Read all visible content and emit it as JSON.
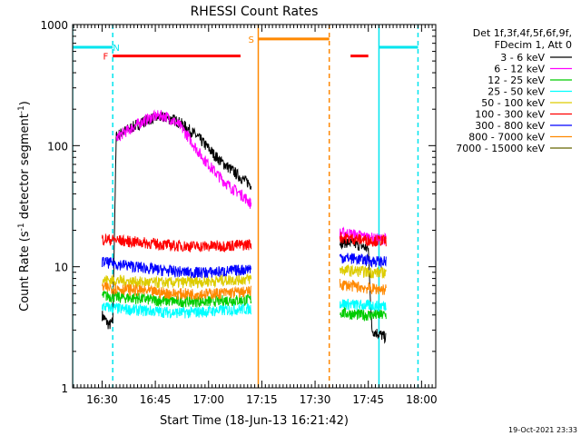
{
  "chart_data": {
    "type": "line",
    "title": "RHESSI Count Rates",
    "xlabel": "Start Time (18-Jun-13 16:21:42)",
    "ylabel_parts": [
      "Count Rate (s",
      "-1",
      " detector segment",
      "-1",
      ")"
    ],
    "yscale": "log",
    "xlim": [
      "16:21:42",
      "18:04:00"
    ],
    "ylim": [
      1,
      1000
    ],
    "x_ticks": [
      "16:30",
      "16:45",
      "17:00",
      "17:15",
      "17:30",
      "17:45",
      "18:00"
    ],
    "y_ticks": [
      "1",
      "10",
      "100",
      "1000"
    ],
    "legend_header": [
      "Det 1f,3f,4f,5f,6f,9f,",
      "FDecim 1, Att 0"
    ],
    "legend_position": "right",
    "footer_date": "19-Oct-2021 23:33",
    "series": [
      {
        "name": "3 - 6 keV",
        "color": "#000000",
        "seg1": [
          [
            "16:30",
            4.0
          ],
          [
            "16:31",
            3.6
          ],
          [
            "16:32",
            3.3
          ],
          [
            "16:33",
            3.5
          ],
          [
            "16:34",
            120
          ],
          [
            "16:36",
            130
          ],
          [
            "16:38",
            140
          ],
          [
            "16:40",
            150
          ],
          [
            "16:42",
            160
          ],
          [
            "16:44",
            168
          ],
          [
            "16:46",
            172
          ],
          [
            "16:48",
            170
          ],
          [
            "16:50",
            165
          ],
          [
            "16:52",
            155
          ],
          [
            "16:54",
            140
          ],
          [
            "16:56",
            125
          ],
          [
            "16:58",
            110
          ],
          [
            "17:00",
            95
          ],
          [
            "17:02",
            82
          ],
          [
            "17:04",
            72
          ],
          [
            "17:06",
            65
          ],
          [
            "17:08",
            58
          ],
          [
            "17:10",
            52
          ],
          [
            "17:12",
            48
          ]
        ],
        "seg2": [
          [
            "17:37",
            16
          ],
          [
            "17:39",
            16
          ],
          [
            "17:41",
            15.5
          ],
          [
            "17:43",
            15
          ],
          [
            "17:45",
            14
          ],
          [
            "17:46",
            3.0
          ],
          [
            "17:48",
            2.8
          ],
          [
            "17:50",
            2.6
          ]
        ]
      },
      {
        "name": "6 - 12 keV",
        "color": "#ff00ff",
        "seg1": [
          [
            "16:34",
            115
          ],
          [
            "16:36",
            128
          ],
          [
            "16:38",
            138
          ],
          [
            "16:40",
            150
          ],
          [
            "16:42",
            162
          ],
          [
            "16:44",
            172
          ],
          [
            "16:46",
            178
          ],
          [
            "16:48",
            175
          ],
          [
            "16:50",
            162
          ],
          [
            "16:52",
            145
          ],
          [
            "16:54",
            122
          ],
          [
            "16:56",
            100
          ],
          [
            "16:58",
            82
          ],
          [
            "17:00",
            70
          ],
          [
            "17:02",
            60
          ],
          [
            "17:04",
            52
          ],
          [
            "17:06",
            46
          ],
          [
            "17:08",
            42
          ],
          [
            "17:10",
            38
          ],
          [
            "17:12",
            33
          ]
        ],
        "seg2": [
          [
            "17:37",
            19
          ],
          [
            "17:39",
            19
          ],
          [
            "17:41",
            18.5
          ],
          [
            "17:43",
            18
          ],
          [
            "17:45",
            17.5
          ],
          [
            "17:47",
            17
          ],
          [
            "17:50",
            17
          ]
        ]
      },
      {
        "name": "12 - 25 keV",
        "color": "#00cc00",
        "seg1": [
          [
            "16:30",
            5.8
          ],
          [
            "16:35",
            5.6
          ],
          [
            "16:40",
            5.5
          ],
          [
            "16:45",
            5.3
          ],
          [
            "16:50",
            5.2
          ],
          [
            "16:55",
            5.2
          ],
          [
            "17:00",
            5.2
          ],
          [
            "17:05",
            5.3
          ],
          [
            "17:10",
            5.3
          ],
          [
            "17:12",
            5.4
          ]
        ],
        "seg2": [
          [
            "17:37",
            4.2
          ],
          [
            "17:40",
            4.1
          ],
          [
            "17:43",
            4.0
          ],
          [
            "17:46",
            4.0
          ],
          [
            "17:50",
            4.0
          ]
        ]
      },
      {
        "name": "25 - 50 keV",
        "color": "#00ffff",
        "seg1": [
          [
            "16:30",
            4.7
          ],
          [
            "16:35",
            4.5
          ],
          [
            "16:40",
            4.4
          ],
          [
            "16:45",
            4.3
          ],
          [
            "16:50",
            4.2
          ],
          [
            "16:55",
            4.2
          ],
          [
            "17:00",
            4.3
          ],
          [
            "17:05",
            4.4
          ],
          [
            "17:10",
            4.5
          ],
          [
            "17:12",
            4.5
          ]
        ],
        "seg2": [
          [
            "17:37",
            5.0
          ],
          [
            "17:40",
            4.9
          ],
          [
            "17:43",
            4.8
          ],
          [
            "17:46",
            4.8
          ],
          [
            "17:50",
            4.8
          ]
        ]
      },
      {
        "name": "50 - 100 keV",
        "color": "#ddcc00",
        "seg1": [
          [
            "16:30",
            7.8
          ],
          [
            "16:35",
            7.7
          ],
          [
            "16:40",
            7.5
          ],
          [
            "16:45",
            7.4
          ],
          [
            "16:50",
            7.4
          ],
          [
            "16:55",
            7.5
          ],
          [
            "17:00",
            7.6
          ],
          [
            "17:05",
            7.8
          ],
          [
            "17:10",
            7.9
          ],
          [
            "17:12",
            8.0
          ]
        ],
        "seg2": [
          [
            "17:37",
            9.5
          ],
          [
            "17:40",
            9.3
          ],
          [
            "17:43",
            9.2
          ],
          [
            "17:46",
            9.0
          ],
          [
            "17:50",
            9.0
          ]
        ]
      },
      {
        "name": "100 - 300 keV",
        "color": "#ff0000",
        "seg1": [
          [
            "16:30",
            17
          ],
          [
            "16:35",
            16.5
          ],
          [
            "16:40",
            16
          ],
          [
            "16:45",
            15.5
          ],
          [
            "16:50",
            15
          ],
          [
            "16:55",
            14.8
          ],
          [
            "17:00",
            14.8
          ],
          [
            "17:05",
            15
          ],
          [
            "17:10",
            15.2
          ],
          [
            "17:12",
            15.5
          ]
        ],
        "seg2": [
          [
            "17:37",
            17.5
          ],
          [
            "17:40",
            17.2
          ],
          [
            "17:43",
            16.8
          ],
          [
            "17:46",
            16.5
          ],
          [
            "17:50",
            16.5
          ]
        ]
      },
      {
        "name": "300 - 800 keV",
        "color": "#0000ff",
        "seg1": [
          [
            "16:30",
            11
          ],
          [
            "16:35",
            10.5
          ],
          [
            "16:40",
            10
          ],
          [
            "16:45",
            9.5
          ],
          [
            "16:50",
            9.2
          ],
          [
            "16:55",
            9.0
          ],
          [
            "17:00",
            9.0
          ],
          [
            "17:05",
            9.2
          ],
          [
            "17:10",
            9.5
          ],
          [
            "17:12",
            9.8
          ]
        ],
        "seg2": [
          [
            "17:37",
            12
          ],
          [
            "17:40",
            11.8
          ],
          [
            "17:43",
            11.5
          ],
          [
            "17:46",
            11.2
          ],
          [
            "17:50",
            11.0
          ]
        ]
      },
      {
        "name": "800 - 7000 keV",
        "color": "#ff8800",
        "seg1": [
          [
            "16:30",
            6.8
          ],
          [
            "16:35",
            6.6
          ],
          [
            "16:40",
            6.4
          ],
          [
            "16:45",
            6.2
          ],
          [
            "16:50",
            6.0
          ],
          [
            "16:55",
            6.0
          ],
          [
            "17:00",
            6.0
          ],
          [
            "17:05",
            6.1
          ],
          [
            "17:10",
            6.2
          ],
          [
            "17:12",
            6.3
          ]
        ],
        "seg2": [
          [
            "17:37",
            7.2
          ],
          [
            "17:40",
            7.0
          ],
          [
            "17:43",
            6.8
          ],
          [
            "17:46",
            6.6
          ],
          [
            "17:50",
            6.5
          ]
        ]
      },
      {
        "name": "7000 - 15000 keV",
        "color": "#666600",
        "seg1": [],
        "seg2": []
      }
    ],
    "bars": [
      {
        "label": "N",
        "color": "#00e5ee",
        "y": 650,
        "from": "16:21:42",
        "to": "16:33:00",
        "label_at": "16:34:00"
      },
      {
        "label": "F",
        "color": "#ff0000",
        "y": 550,
        "from": "16:33:00",
        "to": "17:09:00",
        "label_at": "16:31:00"
      },
      {
        "label": "S",
        "color": "#ff8800",
        "y": 760,
        "from": "17:14:00",
        "to": "17:34:00",
        "label_at": "17:12:00"
      },
      {
        "label": "",
        "color": "#ff0000",
        "y": 550,
        "from": "17:40:00",
        "to": "17:45:00",
        "label_at": ""
      },
      {
        "label": "",
        "color": "#00e5ee",
        "y": 650,
        "from": "17:48:00",
        "to": "17:59:00",
        "label_at": ""
      }
    ],
    "vlines": [
      {
        "t": "16:21:42",
        "color": "#00e5ee",
        "style": "solid"
      },
      {
        "t": "16:33:00",
        "color": "#00e5ee",
        "style": "dashed"
      },
      {
        "t": "17:14:00",
        "color": "#ff8800",
        "style": "solid"
      },
      {
        "t": "17:34:00",
        "color": "#ff8800",
        "style": "dashed"
      },
      {
        "t": "17:48:00",
        "color": "#00e5ee",
        "style": "solid"
      },
      {
        "t": "17:59:00",
        "color": "#00e5ee",
        "style": "dashed"
      }
    ]
  }
}
